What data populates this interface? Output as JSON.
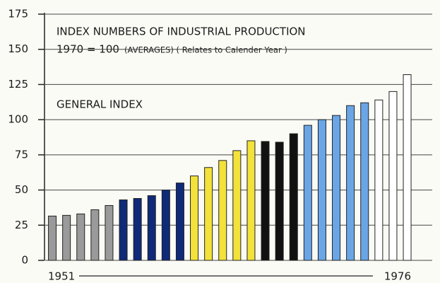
{
  "chart_data": {
    "type": "bar",
    "title": "INDEX NUMBERS OF INDUSTRIAL PRODUCTION",
    "subtitle": "1970 = 100",
    "subtitle_note": "(AVERAGES) ( Relates to Calender Year )",
    "annotation": "GENERAL INDEX",
    "categories": [
      "1951",
      null,
      null,
      null,
      null,
      null,
      null,
      null,
      null,
      null,
      null,
      null,
      null,
      null,
      null,
      null,
      null,
      null,
      null,
      null,
      null,
      null,
      null,
      null,
      null,
      "1976"
    ],
    "values": [
      31.5,
      32,
      33,
      36,
      39,
      43,
      44,
      46,
      50,
      55,
      60,
      66,
      71,
      78,
      85,
      84.5,
      84,
      90,
      96,
      100,
      103,
      110,
      112,
      114,
      120,
      132
    ],
    "colors": [
      "#9a9a9a",
      "#9a9a9a",
      "#9a9a9a",
      "#9a9a9a",
      "#9a9a9a",
      "#0f2a78",
      "#0f2a78",
      "#0f2a78",
      "#0f2a78",
      "#0f2a78",
      "#f2e23a",
      "#f2e23a",
      "#f2e23a",
      "#f2e23a",
      "#f2e23a",
      "#111111",
      "#111111",
      "#111111",
      "#6aa6e6",
      "#6aa6e6",
      "#6aa6e6",
      "#6aa6e6",
      "#6aa6e6",
      "#ffffff",
      "#ffffff",
      "#ffffff"
    ],
    "ylim": [
      0,
      175
    ],
    "yticks": [
      0,
      25,
      50,
      75,
      100,
      125,
      150,
      175
    ],
    "grid": true
  }
}
